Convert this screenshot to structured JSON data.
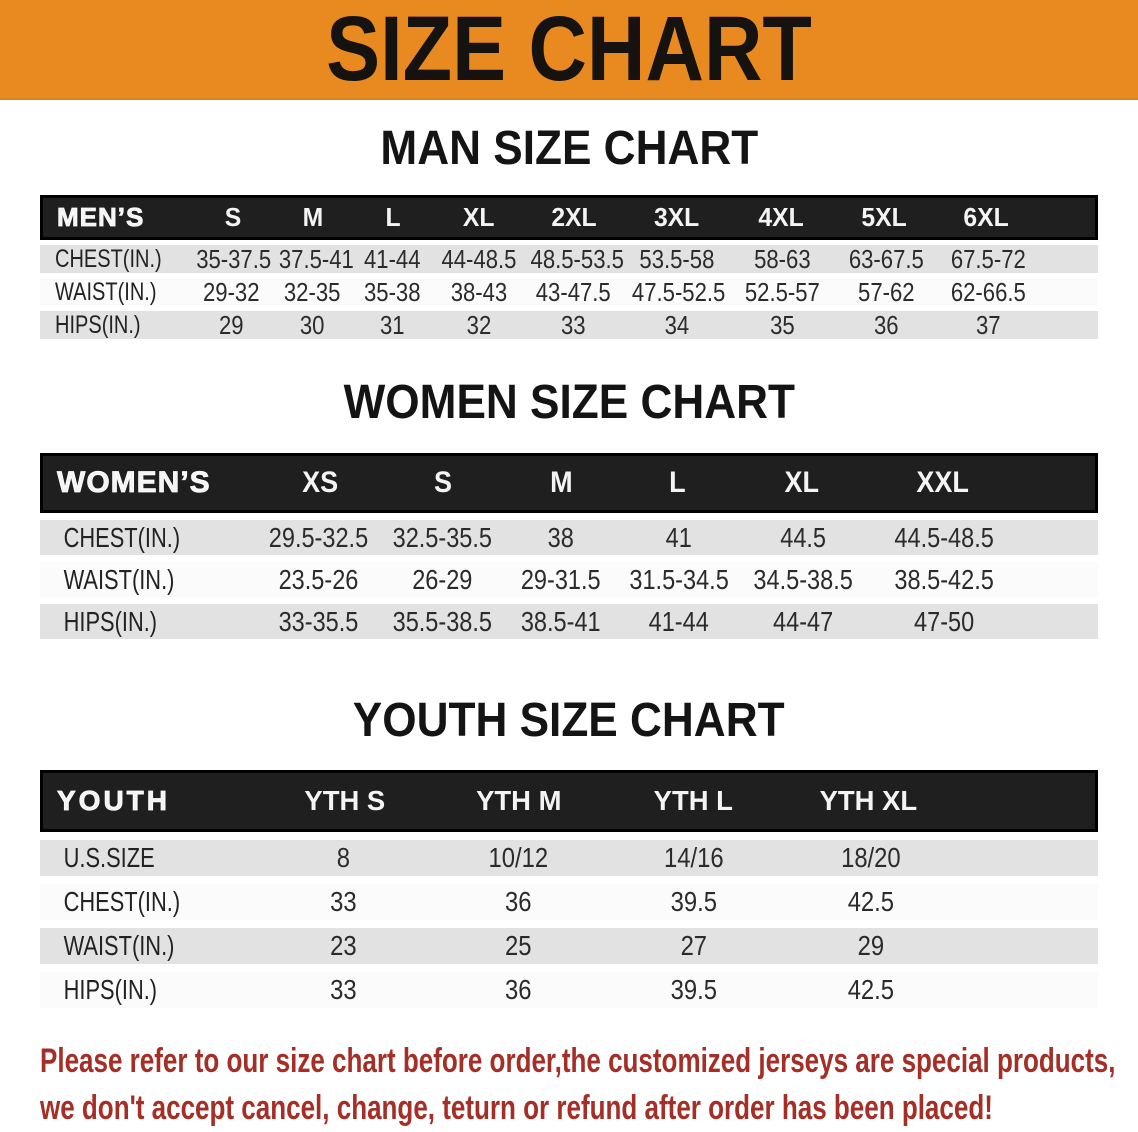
{
  "banner": {
    "title": "SIZE CHART",
    "bg_color": "#E98A20"
  },
  "sections": {
    "man": {
      "heading": "MAN SIZE CHART"
    },
    "women": {
      "heading": "WOMEN SIZE CHART"
    },
    "youth": {
      "heading": "YOUTH SIZE CHART"
    }
  },
  "tables": {
    "mens": {
      "header": [
        "MEN’S",
        "S",
        "M",
        "L",
        "XL",
        "2XL",
        "3XL",
        "4XL",
        "5XL",
        "6XL"
      ],
      "rows": [
        [
          "CHEST(IN.)",
          "35-37.5",
          "37.5-41",
          "41-44",
          "44-48.5",
          "48.5-53.5",
          "53.5-58",
          "58-63",
          "63-67.5",
          "67.5-72"
        ],
        [
          "WAIST(IN.)",
          "29-32",
          "32-35",
          "35-38",
          "38-43",
          "43-47.5",
          "47.5-52.5",
          "52.5-57",
          "57-62",
          "62-66.5"
        ],
        [
          "HIPS(IN.)",
          "29",
          "30",
          "31",
          "32",
          "33",
          "34",
          "35",
          "36",
          "37"
        ]
      ]
    },
    "womens": {
      "header": [
        "WOMEN’S",
        "XS",
        "S",
        "M",
        "L",
        "XL",
        "XXL"
      ],
      "rows": [
        [
          "CHEST(IN.)",
          "29.5-32.5",
          "32.5-35.5",
          "38",
          "41",
          "44.5",
          "44.5-48.5"
        ],
        [
          "WAIST(IN.)",
          "23.5-26",
          "26-29",
          "29-31.5",
          "31.5-34.5",
          "34.5-38.5",
          "38.5-42.5"
        ],
        [
          "HIPS(IN.)",
          "33-35.5",
          "35.5-38.5",
          "38.5-41",
          "41-44",
          "44-47",
          "47-50"
        ]
      ]
    },
    "youth": {
      "header": [
        "YOUTH",
        "YTH S",
        "YTH M",
        "YTH L",
        "YTH XL"
      ],
      "rows": [
        [
          "U.S.SIZE",
          "8",
          "10/12",
          "14/16",
          "18/20"
        ],
        [
          "CHEST(IN.)",
          "33",
          "36",
          "39.5",
          "42.5"
        ],
        [
          "WAIST(IN.)",
          "23",
          "25",
          "27",
          "29"
        ],
        [
          "HIPS(IN.)",
          "33",
          "36",
          "39.5",
          "42.5"
        ]
      ]
    }
  },
  "footer_note": {
    "line1": "Please refer to our size chart before order,the customized jerseys are special products,",
    "line2": "we don't accept cancel, change, teturn or refund after order has been placed!",
    "color": "#A52F26"
  },
  "colors": {
    "banner_bg": "#E98A20",
    "table_header_bg": "#1f1f1f",
    "row_alt_bg": "#E2E2E2"
  }
}
